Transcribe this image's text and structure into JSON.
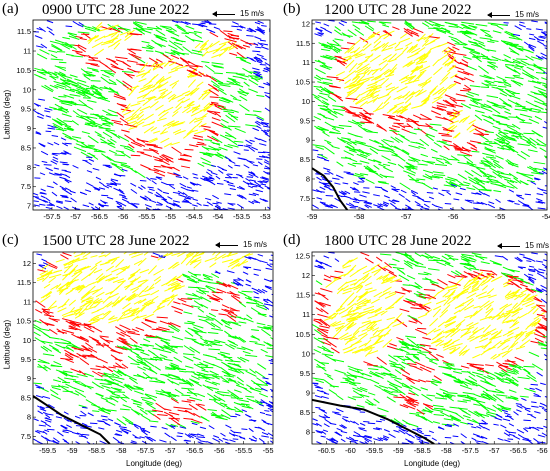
{
  "chart_data": [
    {
      "type": "scatter",
      "panel": "(a)",
      "title": "0900 UTC 28 June 2022",
      "reference_vector": "15 m/s",
      "ylabel": "Latitude (deg)",
      "xlabel": "",
      "x_ticks": [
        "-57.5",
        "-57",
        "-56.5",
        "-56",
        "-55.5",
        "-55",
        "-54.5",
        "-54",
        "-53.5",
        "-53"
      ],
      "y_ticks": [
        "7",
        "7.5",
        "8",
        "8.5",
        "9",
        "9.5",
        "10",
        "10.5",
        "11",
        "11.5"
      ],
      "xlim": [
        -57.9,
        -52.9
      ],
      "ylim": [
        6.9,
        11.8
      ],
      "colors": [
        "#0000ff",
        "#00ff00",
        "#ff0000",
        "#ffff00"
      ],
      "coastline": false
    },
    {
      "type": "scatter",
      "panel": "(b)",
      "title": "1200 UTC 28 June 2022",
      "reference_vector": "15 m/s",
      "ylabel": "",
      "xlabel": "",
      "x_ticks": [
        "-59",
        "-58",
        "-57",
        "-56",
        "-55",
        "-54"
      ],
      "y_ticks": [
        "7.5",
        "8",
        "8.5",
        "9",
        "9.5",
        "10",
        "10.5",
        "11",
        "11.5",
        "12"
      ],
      "xlim": [
        -59,
        -54
      ],
      "ylim": [
        7.2,
        12.1
      ],
      "colors": [
        "#0000ff",
        "#00ff00",
        "#ff0000",
        "#ffff00"
      ],
      "coastline": true
    },
    {
      "type": "scatter",
      "panel": "(c)",
      "title": "1500 UTC 28 June 2022",
      "reference_vector": "15 m/s",
      "ylabel": "Latitude (deg)",
      "xlabel": "Longitude (deg)",
      "x_ticks": [
        "-59.5",
        "-59",
        "-58.5",
        "-58",
        "-57.5",
        "-57",
        "-56.5",
        "-56",
        "-55.5",
        "-55"
      ],
      "y_ticks": [
        "7.5",
        "8",
        "8.5",
        "9",
        "9.5",
        "10",
        "10.5",
        "11",
        "11.5",
        "12"
      ],
      "xlim": [
        -59.8,
        -54.9
      ],
      "ylim": [
        7.3,
        12.3
      ],
      "colors": [
        "#0000ff",
        "#00ff00",
        "#ff0000",
        "#ffff00"
      ],
      "coastline": true
    },
    {
      "type": "scatter",
      "panel": "(d)",
      "title": "1800 UTC 28 June 2022",
      "reference_vector": "15 m/s",
      "ylabel": "",
      "xlabel": "Longitude (deg)",
      "x_ticks": [
        "-60.5",
        "-60",
        "-59.5",
        "-59",
        "-58.5",
        "-58",
        "-57.5",
        "-57",
        "-56.5",
        "-56"
      ],
      "y_ticks": [
        "8",
        "8.5",
        "9",
        "9.5",
        "10",
        "10.5",
        "11",
        "11.5",
        "12",
        "12.5"
      ],
      "xlim": [
        -60.8,
        -55.9
      ],
      "ylim": [
        7.7,
        12.6
      ],
      "colors": [
        "#0000ff",
        "#00ff00",
        "#ff0000",
        "#ffff00"
      ],
      "coastline": true
    }
  ]
}
